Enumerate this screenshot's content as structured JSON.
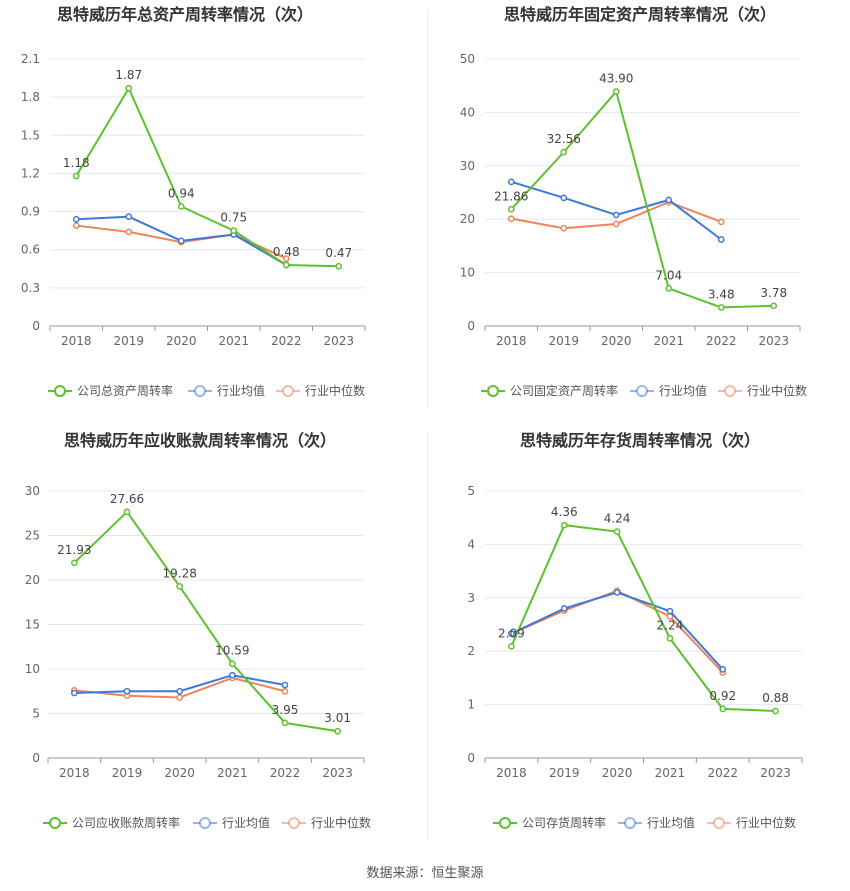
{
  "footer": {
    "source": "数据来源：恒生聚源"
  },
  "legend_common": {
    "avg": "行业均值",
    "median": "行业中位数"
  },
  "colors": {
    "company": "#5cc12c",
    "avg": "#3f78d8",
    "median": "#ef8458",
    "grid": "#e6e6f0",
    "axis": "#999999",
    "text": "#666666"
  },
  "chart_data": [
    {
      "type": "line",
      "title": "思特威历年总资产周转率情况（次）",
      "categories": [
        "2018",
        "2019",
        "2020",
        "2021",
        "2022",
        "2023"
      ],
      "ylim": [
        0,
        2.1
      ],
      "yticks": [
        "0",
        "0.3",
        "0.6",
        "0.9",
        "1.2",
        "1.5",
        "1.8",
        "2.1"
      ],
      "legend_position": "bottom",
      "series": [
        {
          "name": "公司总资产周转率",
          "values": [
            1.18,
            1.87,
            0.94,
            0.75,
            0.48,
            0.47
          ],
          "labels": [
            "1.18",
            "1.87",
            "0.94",
            "0.75",
            "0.48",
            "0.47"
          ]
        },
        {
          "name": "行业均值",
          "values": [
            0.84,
            0.86,
            0.67,
            0.72,
            0.48,
            null
          ]
        },
        {
          "name": "行业中位数",
          "values": [
            0.79,
            0.74,
            0.66,
            0.72,
            0.53,
            null
          ]
        }
      ]
    },
    {
      "type": "line",
      "title": "思特威历年固定资产周转率情况（次）",
      "categories": [
        "2018",
        "2019",
        "2020",
        "2021",
        "2022",
        "2023"
      ],
      "ylim": [
        0,
        50
      ],
      "yticks": [
        "0",
        "10",
        "20",
        "30",
        "40",
        "50"
      ],
      "legend_position": "bottom",
      "series": [
        {
          "name": "公司固定资产周转率",
          "values": [
            21.86,
            32.56,
            43.9,
            7.04,
            3.48,
            3.78
          ],
          "labels": [
            "21.86",
            "32.56",
            "43.90",
            "7.04",
            "3.48",
            "3.78"
          ]
        },
        {
          "name": "行业均值",
          "values": [
            27.0,
            24.0,
            20.8,
            23.6,
            16.2,
            null
          ]
        },
        {
          "name": "行业中位数",
          "values": [
            20.1,
            18.3,
            19.1,
            23.2,
            19.5,
            null
          ]
        }
      ]
    },
    {
      "type": "line",
      "title": "思特威历年应收账款周转率情况（次）",
      "categories": [
        "2018",
        "2019",
        "2020",
        "2021",
        "2022",
        "2023"
      ],
      "ylim": [
        0,
        30
      ],
      "yticks": [
        "0",
        "5",
        "10",
        "15",
        "20",
        "25",
        "30"
      ],
      "legend_position": "bottom",
      "series": [
        {
          "name": "公司应收账款周转率",
          "values": [
            21.93,
            27.66,
            19.28,
            10.59,
            3.95,
            3.01
          ],
          "labels": [
            "21.93",
            "27.66",
            "19.28",
            "10.59",
            "3.95",
            "3.01"
          ]
        },
        {
          "name": "行业均值",
          "values": [
            7.3,
            7.5,
            7.5,
            9.3,
            8.2,
            null
          ]
        },
        {
          "name": "行业中位数",
          "values": [
            7.6,
            7.0,
            6.8,
            9.0,
            7.5,
            null
          ]
        }
      ]
    },
    {
      "type": "line",
      "title": "思特威历年存货周转率情况（次）",
      "categories": [
        "2018",
        "2019",
        "2020",
        "2021",
        "2022",
        "2023"
      ],
      "ylim": [
        0,
        5
      ],
      "yticks": [
        "0",
        "1",
        "2",
        "3",
        "4",
        "5"
      ],
      "legend_position": "bottom",
      "series": [
        {
          "name": "公司存货周转率",
          "values": [
            2.09,
            4.36,
            4.24,
            2.24,
            0.92,
            0.88
          ],
          "labels": [
            "2.09",
            "4.36",
            "4.24",
            "2.24",
            "0.92",
            "0.88"
          ]
        },
        {
          "name": "行业均值",
          "values": [
            2.33,
            2.8,
            3.1,
            2.75,
            1.66,
            null
          ]
        },
        {
          "name": "行业中位数",
          "values": [
            2.33,
            2.76,
            3.13,
            2.65,
            1.6,
            null
          ]
        }
      ]
    }
  ]
}
